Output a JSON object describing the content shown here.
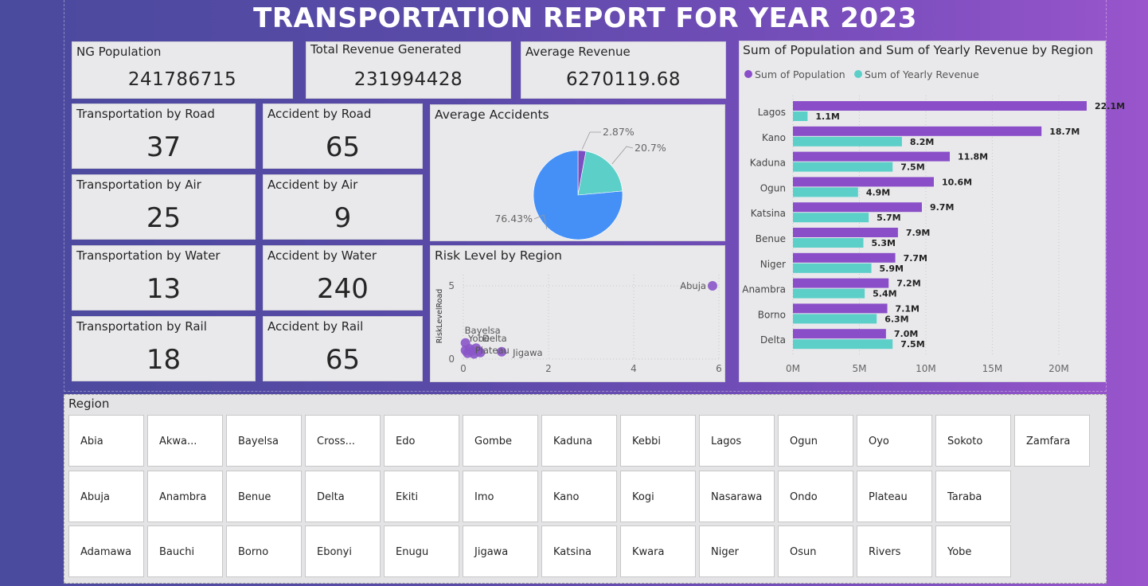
{
  "title": "TRANSPORTATION REPORT FOR YEAR 2023",
  "kpis": {
    "population": {
      "label": "NG Population",
      "value": "241786715"
    },
    "revenue": {
      "label": "Total Revenue Generated",
      "value": "231994428"
    },
    "avg_revenue": {
      "label": "Average Revenue",
      "value": "6270119.68"
    }
  },
  "modes": [
    {
      "label": "Transportation by Road",
      "value": "37"
    },
    {
      "label": "Transportation by Air",
      "value": "25"
    },
    {
      "label": "Transportation by Water",
      "value": "13"
    },
    {
      "label": "Transportation by Rail",
      "value": "18"
    }
  ],
  "accidents": [
    {
      "label": "Accident by Road",
      "value": "65"
    },
    {
      "label": "Accident by Air",
      "value": "9"
    },
    {
      "label": "Accident by Water",
      "value": "240"
    },
    {
      "label": "Accident by Rail",
      "value": "65"
    }
  ],
  "pie": {
    "title": "Average Accidents",
    "slices": [
      {
        "label": "2.87%",
        "value": 2.87,
        "color": "#7b4fc2"
      },
      {
        "label": "20.7%",
        "value": 20.7,
        "color": "#5ccfc9"
      },
      {
        "label": "76.43%",
        "value": 76.43,
        "color": "#4590f7"
      }
    ]
  },
  "scatter": {
    "title": "Risk Level by Region",
    "ylabel": "RiskLevelRoad",
    "xticks": [
      "0",
      "2",
      "4",
      "6"
    ],
    "yticks": [
      "0",
      "5"
    ],
    "xlim": [
      0,
      6
    ],
    "ylim": [
      0,
      5
    ],
    "points": [
      {
        "label": "Abuja",
        "x": 5.85,
        "y": 5.0
      },
      {
        "label": "Bayelsa",
        "x": 0.05,
        "y": 1.1
      },
      {
        "label": "Yobe",
        "x": 0.15,
        "y": 0.7
      },
      {
        "label": "Delta",
        "x": 0.3,
        "y": 0.75
      },
      {
        "label": "Plateau",
        "x": 0.35,
        "y": 0.55
      },
      {
        "label": "Jigawa",
        "x": 0.9,
        "y": 0.5
      },
      {
        "label": "",
        "x": 0.1,
        "y": 0.4
      },
      {
        "label": "",
        "x": 0.2,
        "y": 0.55
      },
      {
        "label": "",
        "x": 0.4,
        "y": 0.45
      },
      {
        "label": "",
        "x": 0.05,
        "y": 0.6
      },
      {
        "label": "",
        "x": 0.25,
        "y": 0.35
      }
    ],
    "color": "#8a55c8"
  },
  "chart_data": {
    "type": "bar",
    "orientation": "horizontal",
    "title": "Sum of Population and Sum of Yearly Revenue by Region",
    "categories": [
      "Lagos",
      "Kano",
      "Kaduna",
      "Ogun",
      "Katsina",
      "Benue",
      "Niger",
      "Anambra",
      "Borno",
      "Delta"
    ],
    "series": [
      {
        "name": "Sum of Population",
        "color": "#8a4fc8",
        "values": [
          22.1,
          18.7,
          11.8,
          10.6,
          9.7,
          7.9,
          7.7,
          7.2,
          7.1,
          7.0
        ],
        "labels": [
          "22.1M",
          "18.7M",
          "11.8M",
          "10.6M",
          "9.7M",
          "7.9M",
          "7.7M",
          "7.2M",
          "7.1M",
          "7.0M"
        ]
      },
      {
        "name": "Sum of Yearly Revenue",
        "color": "#5ccfc9",
        "values": [
          1.1,
          8.2,
          7.5,
          4.9,
          5.7,
          5.3,
          5.9,
          5.4,
          6.3,
          7.5
        ],
        "labels": [
          "1.1M",
          "8.2M",
          "7.5M",
          "4.9M",
          "5.7M",
          "5.3M",
          "5.9M",
          "5.4M",
          "6.3M",
          "7.5M"
        ]
      }
    ],
    "xticks": [
      "0M",
      "5M",
      "10M",
      "15M",
      "20M"
    ],
    "xlim": [
      0,
      22.1
    ],
    "grid": true,
    "legend": "top-left"
  },
  "slicer": {
    "title": "Region",
    "rows": [
      [
        "Abia",
        "Akwa...",
        "Bayelsa",
        "Cross...",
        "Edo",
        "Gombe",
        "Kaduna",
        "Kebbi",
        "Lagos",
        "Ogun",
        "Oyo",
        "Sokoto",
        "Zamfara"
      ],
      [
        "Abuja",
        "Anambra",
        "Benue",
        "Delta",
        "Ekiti",
        "Imo",
        "Kano",
        "Kogi",
        "Nasarawa",
        "Ondo",
        "Plateau",
        "Taraba"
      ],
      [
        "Adamawa",
        "Bauchi",
        "Borno",
        "Ebonyi",
        "Enugu",
        "Jigawa",
        "Katsina",
        "Kwara",
        "Niger",
        "Osun",
        "Rivers",
        "Yobe"
      ]
    ]
  }
}
